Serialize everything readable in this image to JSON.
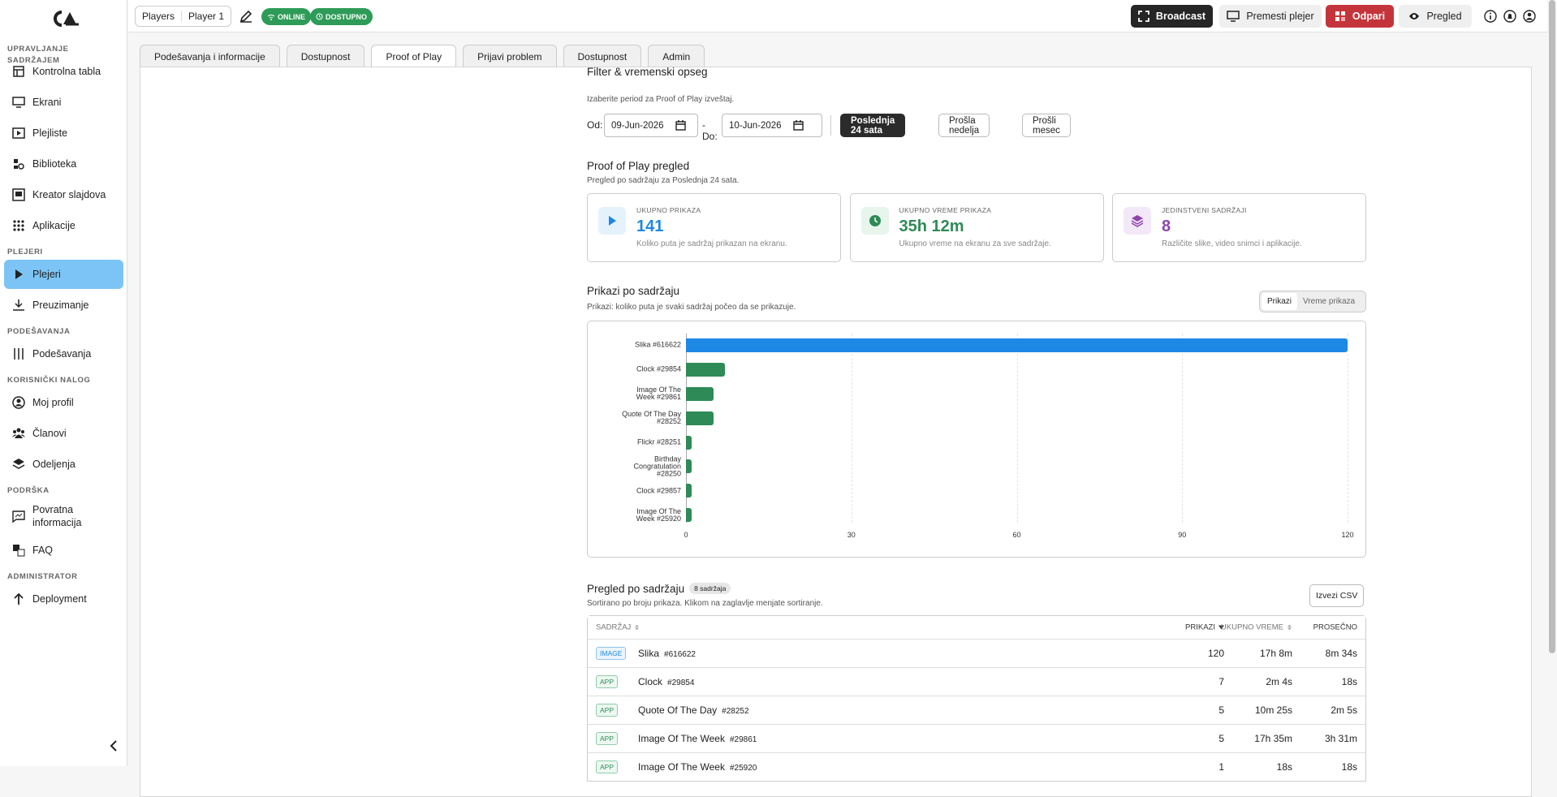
{
  "sidebar": {
    "sections": [
      {
        "title": "UPRAVLJANJE SADRŽAJEM",
        "items": [
          "Kontrolna tabla",
          "Ekrani",
          "Plejliste",
          "Biblioteka",
          "Kreator slajdova",
          "Aplikacije"
        ]
      },
      {
        "title": "PLEJERI",
        "items": [
          "Plejeri",
          "Preuzimanje"
        ]
      },
      {
        "title": "PODEŠAVANJA",
        "items": [
          "Podešavanja"
        ]
      },
      {
        "title": "KORISNIČKI NALOG",
        "items": [
          "Moj profil",
          "Članovi",
          "Odeljenja"
        ]
      },
      {
        "title": "PODRŠKA",
        "items": [
          "Povratna informacija",
          "FAQ"
        ]
      },
      {
        "title": "ADMINISTRATOR",
        "items": [
          "Deployment"
        ]
      }
    ]
  },
  "topbar": {
    "breadcrumb": [
      "Players",
      "Player 1"
    ],
    "badges": [
      "ONLINE",
      "DOSTUPNO"
    ],
    "buttons": [
      "Broadcast",
      "Premesti plejer",
      "Odpari",
      "Pregled"
    ]
  },
  "tabs": [
    "Podešavanja i informacije",
    "Dostupnost",
    "Proof of Play",
    "Prijavi problem",
    "Dostupnost",
    "Admin"
  ],
  "filter": {
    "title": "Filter & vremenski opseg",
    "subtitle": "Izaberite period za Proof of Play izveštaj.",
    "from_label": "Od:",
    "from": "09-Jun-2026",
    "to_label": "- Do:",
    "to": "10-Jun-2026",
    "presets": [
      "Poslednja 24 sata",
      "Prošla nedelja",
      "Prošli mesec"
    ]
  },
  "overview": {
    "title": "Proof of Play pregled",
    "subtitle": "Pregled po sadržaju za Poslednja 24 sata.",
    "cards": [
      {
        "label": "UKUPNO PRIKAZA",
        "value": 141,
        "desc": "Koliko puta je sadržaj prikazan na ekranu."
      },
      {
        "label": "UKUPNO VREME PRIKAZA",
        "value": "35h 12m",
        "desc": "Ukupno vreme na ekranu za sve sadržaje."
      },
      {
        "label": "JEDINSTVENI SADRŽAJI",
        "value": 8,
        "desc": "Različite slike, video snimci i aplikacije."
      }
    ]
  },
  "chart_toggle": [
    "Prikazi",
    "Vreme prikaza"
  ],
  "chart_data": {
    "type": "bar",
    "orientation": "horizontal",
    "title": "Prikazi po sadržaju",
    "subtitle": "Prikazi: koliko puta je svaki sadržaj počeo da se prikazuje.",
    "categories": [
      "Slika #616622",
      "Clock #29854",
      "Image Of The Week #29861",
      "Quote Of The Day #28252",
      "Flickr #28251",
      "Birthday Congratulation #28250",
      "Clock #29857",
      "Image Of The Week #25920"
    ],
    "values": [
      120,
      7,
      5,
      5,
      1,
      1,
      1,
      1
    ],
    "colors": [
      "#1e88e5",
      "#2e8b57",
      "#2e8b57",
      "#2e8b57",
      "#2e8b57",
      "#2e8b57",
      "#2e8b57",
      "#2e8b57"
    ],
    "xlim": [
      0,
      120
    ],
    "xticks": [
      0,
      30,
      60,
      90,
      120
    ],
    "grid": true
  },
  "table": {
    "title": "Pregled po sadržaju",
    "count": "8 sadržaja",
    "subtitle": "Sortirano po broju prikaza. Klikom na zaglavlje menjate sortiranje.",
    "export": "Izvezi CSV",
    "columns": [
      "SADRŽAJ",
      "PRIKAZI",
      "UKUPNO VREME",
      "PROSEČNO"
    ],
    "rows": [
      [
        "IMAGE",
        "Slika",
        "#616622",
        120,
        "17h 8m",
        "8m 34s"
      ],
      [
        "APP",
        "Clock",
        "#29854",
        7,
        "2m 4s",
        "18s"
      ],
      [
        "APP",
        "Quote Of The Day",
        "#28252",
        5,
        "10m 25s",
        "2m 5s"
      ],
      [
        "APP",
        "Image Of The Week",
        "#29861",
        5,
        "17h 35m",
        "3h 31m"
      ],
      [
        "APP",
        "Image Of The Week",
        "#25920",
        1,
        "18s",
        "18s"
      ]
    ]
  }
}
